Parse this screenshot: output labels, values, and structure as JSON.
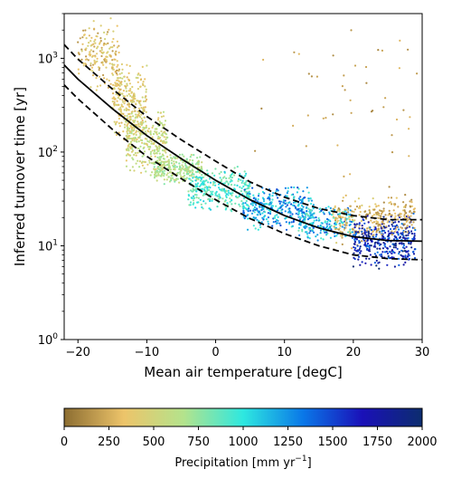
{
  "chart_data": {
    "type": "scatter",
    "xlabel": "Mean air temperature [degC]",
    "ylabel": "Inferred turnover time [yr]",
    "xlim": [
      -22,
      30
    ],
    "ylim": [
      1,
      3000
    ],
    "yscale": "log",
    "x_ticks": [
      "−20",
      "−10",
      "0",
      "10",
      "20",
      "30"
    ],
    "y_ticks": [
      {
        "base": "10",
        "exp": "0"
      },
      {
        "base": "10",
        "exp": "1"
      },
      {
        "base": "10",
        "exp": "2"
      },
      {
        "base": "10",
        "exp": "3"
      }
    ],
    "grid": false,
    "fit_curves": {
      "central": {
        "style": "solid",
        "color": "#000000",
        "x": [
          -22,
          -20,
          -15,
          -10,
          -5,
          0,
          5,
          10,
          15,
          20,
          25,
          30
        ],
        "y": [
          850,
          600,
          290,
          150,
          85,
          50,
          31,
          21,
          15.5,
          12.5,
          11.4,
          11.2
        ]
      },
      "upper": {
        "style": "dashed",
        "color": "#000000",
        "x": [
          -22,
          -20,
          -15,
          -10,
          -5,
          0,
          5,
          10,
          15,
          20,
          25,
          30
        ],
        "y": [
          1400,
          980,
          470,
          240,
          135,
          80,
          48,
          33,
          25,
          21,
          19,
          19
        ]
      },
      "lower": {
        "style": "dashed",
        "color": "#000000",
        "x": [
          -22,
          -20,
          -15,
          -10,
          -5,
          0,
          5,
          10,
          15,
          20,
          25,
          30
        ],
        "y": [
          520,
          370,
          175,
          90,
          52,
          31,
          19.5,
          13.5,
          10,
          8,
          7.3,
          7.1
        ]
      }
    },
    "scatter_clusters": [
      {
        "x_range": [
          -20,
          -14
        ],
        "log10_y_range": [
          2.6,
          3.45
        ],
        "precip_range": [
          150,
          500
        ],
        "count": 180
      },
      {
        "x_range": [
          -15,
          -10
        ],
        "log10_y_range": [
          2.1,
          3.0
        ],
        "precip_range": [
          250,
          550
        ],
        "count": 260
      },
      {
        "x_range": [
          -13,
          -7
        ],
        "log10_y_range": [
          1.75,
          2.5
        ],
        "precip_range": [
          350,
          700
        ],
        "count": 300
      },
      {
        "x_range": [
          -9,
          -2
        ],
        "log10_y_range": [
          1.65,
          2.0
        ],
        "precip_range": [
          500,
          800
        ],
        "count": 260
      },
      {
        "x_range": [
          -4,
          5
        ],
        "log10_y_range": [
          1.35,
          1.85
        ],
        "precip_range": [
          700,
          1100
        ],
        "count": 300
      },
      {
        "x_range": [
          4,
          14
        ],
        "log10_y_range": [
          1.15,
          1.65
        ],
        "precip_range": [
          900,
          1500
        ],
        "count": 320
      },
      {
        "x_range": [
          12,
          20
        ],
        "log10_y_range": [
          1.05,
          1.45
        ],
        "precip_range": [
          800,
          1500
        ],
        "count": 220
      },
      {
        "x_range": [
          17,
          24
        ],
        "log10_y_range": [
          0.95,
          1.55
        ],
        "precip_range": [
          100,
          450
        ],
        "count": 160
      },
      {
        "x_range": [
          20,
          29
        ],
        "log10_y_range": [
          0.75,
          1.35
        ],
        "precip_range": [
          1300,
          2000
        ],
        "count": 380
      },
      {
        "x_range": [
          23,
          29
        ],
        "log10_y_range": [
          1.1,
          1.55
        ],
        "precip_range": [
          100,
          400
        ],
        "count": 120
      },
      {
        "x_range": [
          5,
          30
        ],
        "log10_y_range": [
          1.5,
          3.4
        ],
        "precip_range": [
          100,
          300
        ],
        "count": 45
      }
    ],
    "colorbar": {
      "label_text": "Precipitation [mm yr",
      "label_exp": "−1",
      "label_close": "]",
      "range": [
        0,
        2000
      ],
      "ticks": [
        "0",
        "250",
        "500",
        "750",
        "1000",
        "1250",
        "1500",
        "1750",
        "2000"
      ],
      "colors": [
        "#8c6d31",
        "#edc46a",
        "#b4e38c",
        "#2ee8e0",
        "#0a78e8",
        "#1a10b8",
        "#0c2d6e"
      ]
    }
  }
}
